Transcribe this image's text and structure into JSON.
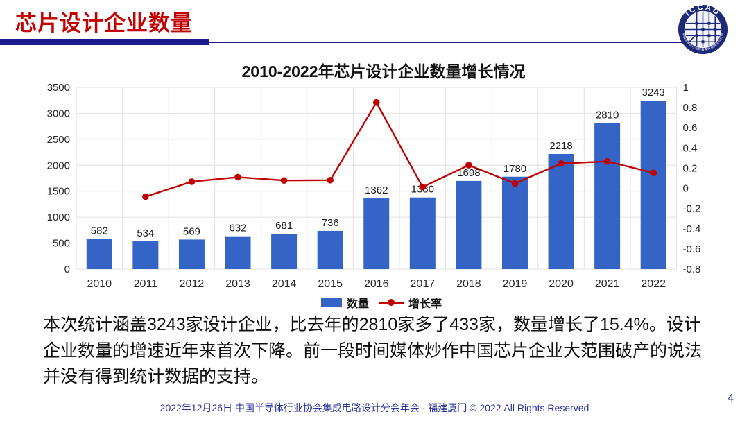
{
  "header": {
    "title": "芯片设计企业数量",
    "logo": {
      "acronym": "ICCAD",
      "ring_text": "中国半导体行业协会集成电路设计分会"
    }
  },
  "chart_data": {
    "type": "bar+line",
    "title": "2010-2022年芯片设计企业数量增长情况",
    "categories": [
      "2010",
      "2011",
      "2012",
      "2013",
      "2014",
      "2015",
      "2016",
      "2017",
      "2018",
      "2019",
      "2020",
      "2021",
      "2022"
    ],
    "series": [
      {
        "name": "数量",
        "type": "bar",
        "axis": "left",
        "color": "#3464c6",
        "values": [
          582,
          534,
          569,
          632,
          681,
          736,
          1362,
          1380,
          1698,
          1780,
          2218,
          2810,
          3243
        ]
      },
      {
        "name": "增长率",
        "type": "line",
        "axis": "right",
        "color": "#c00000",
        "values": [
          null,
          -0.082,
          0.066,
          0.111,
          0.078,
          0.081,
          0.851,
          0.013,
          0.23,
          0.048,
          0.246,
          0.267,
          0.154
        ]
      }
    ],
    "left_axis": {
      "min": 0,
      "max": 3500,
      "step": 500
    },
    "right_axis": {
      "min": -0.8,
      "max": 1,
      "step": 0.2
    },
    "grid": true,
    "legend_position": "bottom",
    "colors": {
      "gridline": "#e2e2e2"
    }
  },
  "body": {
    "paragraph": "本次统计涵盖3243家设计企业，比去年的2810家多了433家，数量增长了15.4%。设计企业数量的增速近年来首次下降。前一段时间媒体炒作中国芯片企业大范围破产的说法并没有得到统计数据的支持。"
  },
  "footer": {
    "text": "2022年12月26日 中国半导体行业协会集成电路设计分会年会 · 福建厦门 © 2022 All Rights Reserved",
    "page_number": "4"
  }
}
